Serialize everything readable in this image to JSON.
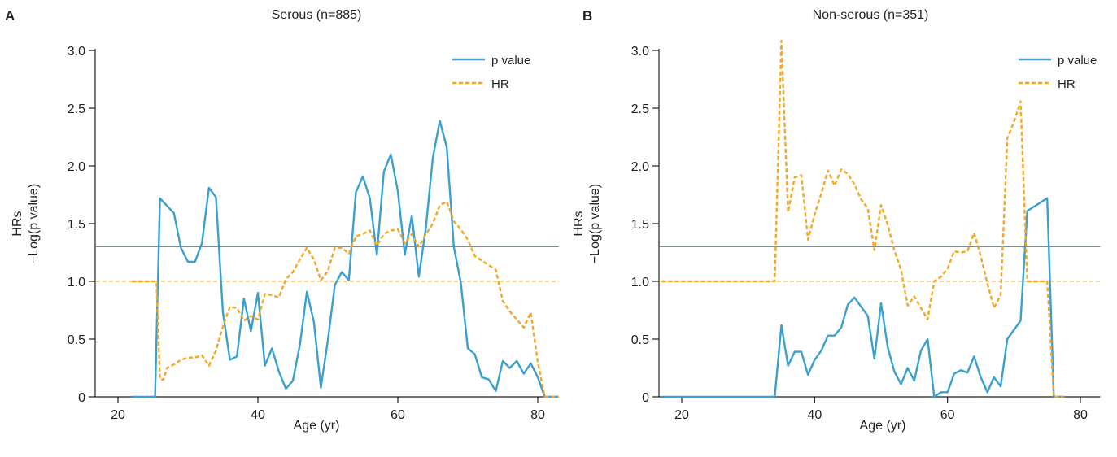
{
  "chart_data": [
    {
      "panel_letter": "A",
      "title": "Serous (n=885)",
      "type": "line",
      "xlabel": "Age (yr)",
      "ylabel_line1": "HRs",
      "ylabel_line2": "−Log(p value)",
      "xlim": [
        17,
        83
      ],
      "ylim": [
        0,
        3.0
      ],
      "xticks": [
        20,
        40,
        60,
        80
      ],
      "xtick_labels": [
        "20",
        "40",
        "60",
        "80"
      ],
      "yticks": [
        0,
        0.5,
        1.0,
        1.5,
        2.0,
        2.5,
        3.0
      ],
      "ytick_labels": [
        "0",
        "0.5",
        "1.0",
        "1.5",
        "2.0",
        "2.5",
        "3.0"
      ],
      "legend_position": "top-right",
      "reference_lines": [
        {
          "y": 1.3,
          "style": "solid",
          "color": "#3aa0d0"
        },
        {
          "y": 1.0,
          "style": "dashed",
          "color": "#f5a623"
        }
      ],
      "series": [
        {
          "name": "p value",
          "style": "solid",
          "color": "#3aa0d0",
          "points": [
            [
              22,
              0
            ],
            [
              25,
              0
            ],
            [
              25.3,
              0
            ],
            [
              26,
              1.72
            ],
            [
              28,
              1.59
            ],
            [
              29,
              1.29
            ],
            [
              30,
              1.17
            ],
            [
              31,
              1.17
            ],
            [
              32,
              1.33
            ],
            [
              33,
              1.81
            ],
            [
              34,
              1.73
            ],
            [
              35,
              0.73
            ],
            [
              36,
              0.32
            ],
            [
              37,
              0.35
            ],
            [
              38,
              0.85
            ],
            [
              39,
              0.57
            ],
            [
              40,
              0.9
            ],
            [
              41,
              0.27
            ],
            [
              42,
              0.42
            ],
            [
              43,
              0.22
            ],
            [
              44,
              0.07
            ],
            [
              45,
              0.14
            ],
            [
              46,
              0.45
            ],
            [
              47,
              0.91
            ],
            [
              48,
              0.65
            ],
            [
              49,
              0.08
            ],
            [
              50,
              0.49
            ],
            [
              51,
              0.97
            ],
            [
              52,
              1.08
            ],
            [
              53,
              1.01
            ],
            [
              54,
              1.77
            ],
            [
              55,
              1.91
            ],
            [
              56,
              1.72
            ],
            [
              57,
              1.23
            ],
            [
              58,
              1.95
            ],
            [
              59,
              2.1
            ],
            [
              60,
              1.78
            ],
            [
              61,
              1.23
            ],
            [
              62,
              1.57
            ],
            [
              63,
              1.04
            ],
            [
              64,
              1.46
            ],
            [
              65,
              2.07
            ],
            [
              66,
              2.39
            ],
            [
              67,
              2.16
            ],
            [
              68,
              1.3
            ],
            [
              69,
              0.99
            ],
            [
              70,
              0.42
            ],
            [
              71,
              0.37
            ],
            [
              72,
              0.17
            ],
            [
              73,
              0.15
            ],
            [
              74,
              0.05
            ],
            [
              75,
              0.31
            ],
            [
              76,
              0.25
            ],
            [
              77,
              0.31
            ],
            [
              78,
              0.2
            ],
            [
              79,
              0.29
            ],
            [
              80,
              0.17
            ],
            [
              81,
              0
            ],
            [
              83,
              0
            ]
          ]
        },
        {
          "name": "HR",
          "style": "dashed",
          "color": "#f5a623",
          "points": [
            [
              22,
              1
            ],
            [
              25,
              1
            ],
            [
              25.5,
              1
            ],
            [
              26,
              0.15
            ],
            [
              26.5,
              0.15
            ],
            [
              27,
              0.25
            ],
            [
              28,
              0.28
            ],
            [
              29,
              0.32
            ],
            [
              30,
              0.34
            ],
            [
              31,
              0.34
            ],
            [
              32,
              0.36
            ],
            [
              33,
              0.27
            ],
            [
              34,
              0.4
            ],
            [
              35,
              0.61
            ],
            [
              36,
              0.78
            ],
            [
              37,
              0.77
            ],
            [
              38,
              0.66
            ],
            [
              39,
              0.7
            ],
            [
              40,
              0.67
            ],
            [
              41,
              0.89
            ],
            [
              42,
              0.88
            ],
            [
              43,
              0.86
            ],
            [
              44,
              1.02
            ],
            [
              45,
              1.08
            ],
            [
              46,
              1.19
            ],
            [
              47,
              1.29
            ],
            [
              48,
              1.19
            ],
            [
              49,
              1.01
            ],
            [
              50,
              1.09
            ],
            [
              51,
              1.29
            ],
            [
              52,
              1.29
            ],
            [
              53,
              1.24
            ],
            [
              54,
              1.39
            ],
            [
              55,
              1.41
            ],
            [
              56,
              1.44
            ],
            [
              57,
              1.31
            ],
            [
              58,
              1.41
            ],
            [
              59,
              1.44
            ],
            [
              60,
              1.45
            ],
            [
              61,
              1.33
            ],
            [
              62,
              1.41
            ],
            [
              63,
              1.3
            ],
            [
              64,
              1.41
            ],
            [
              65,
              1.5
            ],
            [
              66,
              1.66
            ],
            [
              67,
              1.69
            ],
            [
              68,
              1.52
            ],
            [
              69,
              1.45
            ],
            [
              70,
              1.36
            ],
            [
              71,
              1.22
            ],
            [
              72,
              1.18
            ],
            [
              73,
              1.14
            ],
            [
              74,
              1.1
            ],
            [
              75,
              0.83
            ],
            [
              76,
              0.74
            ],
            [
              77,
              0.67
            ],
            [
              78,
              0.6
            ],
            [
              79,
              0.73
            ],
            [
              80,
              0.3
            ],
            [
              81,
              0
            ],
            [
              83,
              0
            ]
          ]
        }
      ]
    },
    {
      "panel_letter": "B",
      "title": "Non-serous (n=351)",
      "type": "line",
      "xlabel": "Age (yr)",
      "ylabel_line1": "HRs",
      "ylabel_line2": "−Log(p value)",
      "xlim": [
        17,
        83
      ],
      "ylim": [
        0,
        3.0
      ],
      "xticks": [
        20,
        40,
        60,
        80
      ],
      "xtick_labels": [
        "20",
        "40",
        "60",
        "80"
      ],
      "yticks": [
        0,
        0.5,
        1.0,
        1.5,
        2.0,
        2.5,
        3.0
      ],
      "ytick_labels": [
        "0",
        "0.5",
        "1.0",
        "1.5",
        "2.0",
        "2.5",
        "3.0"
      ],
      "legend_position": "top-right",
      "reference_lines": [
        {
          "y": 1.3,
          "style": "solid",
          "color": "#3aa0d0"
        },
        {
          "y": 1.0,
          "style": "dashed",
          "color": "#f5a623"
        }
      ],
      "series": [
        {
          "name": "p value",
          "style": "solid",
          "color": "#3aa0d0",
          "points": [
            [
              17,
              0
            ],
            [
              20,
              0
            ],
            [
              30,
              0
            ],
            [
              34,
              0
            ],
            [
              35,
              0.62
            ],
            [
              36,
              0.27
            ],
            [
              37,
              0.39
            ],
            [
              38,
              0.39
            ],
            [
              39,
              0.19
            ],
            [
              40,
              0.32
            ],
            [
              41,
              0.4
            ],
            [
              42,
              0.53
            ],
            [
              43,
              0.53
            ],
            [
              44,
              0.6
            ],
            [
              45,
              0.8
            ],
            [
              46,
              0.86
            ],
            [
              47,
              0.78
            ],
            [
              48,
              0.7
            ],
            [
              49,
              0.33
            ],
            [
              50,
              0.81
            ],
            [
              51,
              0.43
            ],
            [
              52,
              0.22
            ],
            [
              53,
              0.11
            ],
            [
              54,
              0.25
            ],
            [
              55,
              0.14
            ],
            [
              56,
              0.4
            ],
            [
              57,
              0.5
            ],
            [
              58,
              0
            ],
            [
              59,
              0.04
            ],
            [
              60,
              0.04
            ],
            [
              61,
              0.2
            ],
            [
              62,
              0.23
            ],
            [
              63,
              0.21
            ],
            [
              64,
              0.35
            ],
            [
              65,
              0.17
            ],
            [
              66,
              0.04
            ],
            [
              67,
              0.17
            ],
            [
              68,
              0.09
            ],
            [
              69,
              0.5
            ],
            [
              71,
              0.66
            ],
            [
              72,
              1.61
            ],
            [
              75,
              1.72
            ],
            [
              76,
              0
            ],
            [
              77.5,
              0
            ]
          ]
        },
        {
          "name": "HR",
          "style": "dashed",
          "color": "#f5a623",
          "points": [
            [
              17,
              1
            ],
            [
              30,
              1
            ],
            [
              34,
              1
            ],
            [
              35,
              3.2
            ],
            [
              36,
              1.6
            ],
            [
              37,
              1.9
            ],
            [
              38,
              1.92
            ],
            [
              39,
              1.36
            ],
            [
              40,
              1.58
            ],
            [
              41,
              1.76
            ],
            [
              42,
              1.96
            ],
            [
              43,
              1.83
            ],
            [
              44,
              1.97
            ],
            [
              45,
              1.93
            ],
            [
              46,
              1.84
            ],
            [
              47,
              1.71
            ],
            [
              48,
              1.63
            ],
            [
              49,
              1.27
            ],
            [
              50,
              1.66
            ],
            [
              51,
              1.49
            ],
            [
              52,
              1.27
            ],
            [
              53,
              1.1
            ],
            [
              54,
              0.79
            ],
            [
              55,
              0.87
            ],
            [
              56,
              0.77
            ],
            [
              57,
              0.67
            ],
            [
              58,
              1.0
            ],
            [
              59,
              1.04
            ],
            [
              60,
              1.11
            ],
            [
              61,
              1.26
            ],
            [
              62,
              1.25
            ],
            [
              63,
              1.26
            ],
            [
              64,
              1.42
            ],
            [
              65,
              1.22
            ],
            [
              66,
              0.98
            ],
            [
              67,
              0.77
            ],
            [
              68,
              0.88
            ],
            [
              69,
              2.24
            ],
            [
              70,
              2.38
            ],
            [
              71,
              2.56
            ],
            [
              72,
              1.0
            ],
            [
              75,
              1.0
            ],
            [
              76,
              0
            ],
            [
              77.5,
              0
            ]
          ]
        }
      ]
    }
  ]
}
